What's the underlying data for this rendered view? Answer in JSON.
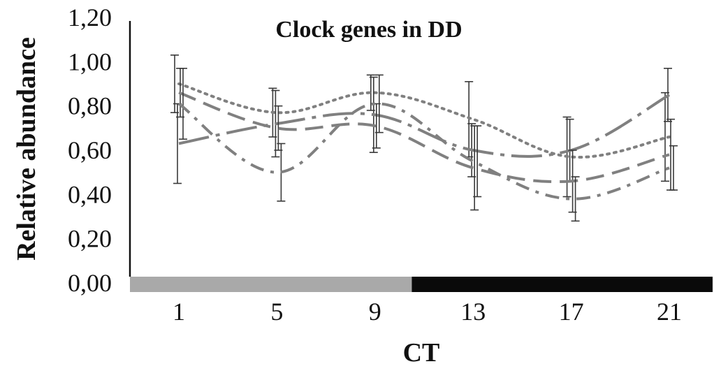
{
  "chart_data": {
    "type": "line",
    "title": "Clock genes in DD",
    "xlabel": "CT",
    "ylabel": "Relative abundance",
    "categories": [
      "1",
      "5",
      "9",
      "13",
      "17",
      "21"
    ],
    "x": [
      1,
      5,
      9,
      13,
      17,
      21
    ],
    "yticks": [
      "0,00",
      "0,20",
      "0,40",
      "0,60",
      "0,80",
      "1,00",
      "1,20"
    ],
    "ylim": [
      0,
      1.2
    ],
    "grid": false,
    "legend": "none",
    "series": [
      {
        "style": "dotted",
        "values": [
          0.9,
          0.77,
          0.86,
          0.74,
          0.57,
          0.66
        ],
        "error": [
          0.13,
          0.11,
          0.08,
          0.17,
          0.18,
          0.2
        ]
      },
      {
        "style": "long-dash-dot",
        "values": [
          0.63,
          0.72,
          0.76,
          0.6,
          0.6,
          0.85
        ],
        "error": [
          0.18,
          0.15,
          0.17,
          0.12,
          0.14,
          0.12
        ]
      },
      {
        "style": "dashed",
        "values": [
          0.86,
          0.7,
          0.71,
          0.52,
          0.46,
          0.58
        ],
        "error": [
          0.11,
          0.1,
          0.1,
          0.19,
          0.14,
          0.16
        ]
      },
      {
        "style": "dash-dot",
        "values": [
          0.81,
          0.5,
          0.81,
          0.55,
          0.38,
          0.52
        ],
        "error": [
          0.16,
          0.13,
          0.13,
          0.16,
          0.1,
          0.1
        ]
      }
    ],
    "light_bar": [
      {
        "phase": "subjective-day",
        "from_ct": -1,
        "to_ct": 10.5,
        "color": "#a9a9a9"
      },
      {
        "phase": "subjective-night",
        "from_ct": 10.5,
        "to_ct": 23,
        "color": "#0a0a0a"
      }
    ],
    "colors": {
      "series": "#808080",
      "errorbars": "#3a3a3a",
      "axis": "#111111"
    }
  }
}
